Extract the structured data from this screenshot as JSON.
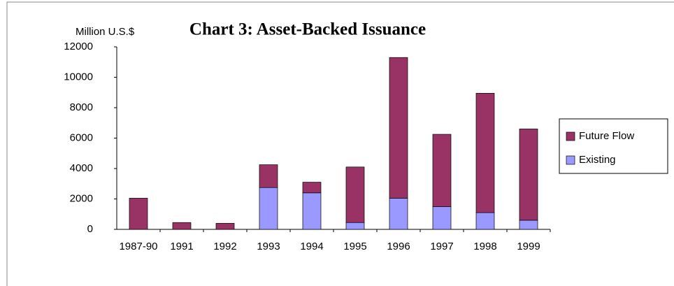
{
  "chart_data": {
    "type": "bar",
    "stacked": true,
    "title": "Chart 3:  Asset-Backed Issuance",
    "y_label": "Million U.S.$",
    "categories": [
      "1987-90",
      "1991",
      "1992",
      "1993",
      "1994",
      "1995",
      "1996",
      "1997",
      "1998",
      "1999"
    ],
    "series": [
      {
        "name": "Future Flow",
        "color": "#993366",
        "values": [
          2050,
          450,
          400,
          1500,
          700,
          3650,
          9250,
          4750,
          7850,
          6000
        ]
      },
      {
        "name": "Existing",
        "color": "#9999ff",
        "values": [
          0,
          0,
          0,
          2750,
          2400,
          450,
          2050,
          1500,
          1100,
          600
        ]
      }
    ],
    "ylim": [
      0,
      12000
    ],
    "yticks": [
      0,
      2000,
      4000,
      6000,
      8000,
      10000,
      12000
    ],
    "grid": false,
    "legend": "right"
  }
}
